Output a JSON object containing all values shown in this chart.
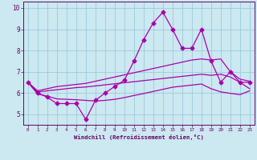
{
  "xlabel": "Windchill (Refroidissement éolien,°C)",
  "x": [
    0,
    1,
    2,
    3,
    4,
    5,
    6,
    7,
    8,
    9,
    10,
    11,
    12,
    13,
    14,
    15,
    16,
    17,
    18,
    19,
    20,
    21,
    22,
    23
  ],
  "line_main": [
    6.5,
    6.0,
    5.8,
    5.5,
    5.5,
    5.5,
    4.75,
    5.65,
    6.0,
    6.3,
    6.6,
    7.5,
    8.5,
    9.3,
    9.8,
    9.0,
    8.1,
    8.1,
    9.0,
    7.5,
    6.5,
    7.0,
    6.5,
    6.5
  ],
  "line_upper": [
    6.5,
    6.1,
    6.2,
    6.3,
    6.35,
    6.4,
    6.45,
    6.55,
    6.65,
    6.75,
    6.85,
    6.95,
    7.05,
    7.15,
    7.25,
    7.35,
    7.45,
    7.55,
    7.6,
    7.55,
    7.6,
    7.0,
    6.65,
    6.55
  ],
  "line_mid": [
    6.5,
    6.05,
    6.1,
    6.15,
    6.2,
    6.25,
    6.28,
    6.33,
    6.38,
    6.43,
    6.48,
    6.53,
    6.58,
    6.63,
    6.68,
    6.73,
    6.78,
    6.83,
    6.88,
    6.83,
    6.88,
    6.75,
    6.5,
    6.2
  ],
  "line_lower": [
    6.5,
    5.95,
    5.85,
    5.72,
    5.7,
    5.68,
    5.65,
    5.62,
    5.65,
    5.7,
    5.78,
    5.88,
    5.97,
    6.07,
    6.17,
    6.27,
    6.32,
    6.37,
    6.42,
    6.2,
    6.05,
    5.98,
    5.92,
    6.1
  ],
  "xlim": [
    -0.5,
    23.5
  ],
  "ylim": [
    4.5,
    10.3
  ],
  "yticks": [
    5,
    6,
    7,
    8,
    9,
    10
  ],
  "xticks": [
    0,
    1,
    2,
    3,
    4,
    5,
    6,
    7,
    8,
    9,
    10,
    11,
    12,
    13,
    14,
    15,
    16,
    17,
    18,
    19,
    20,
    21,
    22,
    23
  ],
  "line_color": "#aa00aa",
  "bg_color": "#cce8f0",
  "grid_color": "#99ccdd",
  "tick_color": "#660066",
  "spine_color": "#660066",
  "marker": "D",
  "markersize": 2.5,
  "linewidth": 0.9
}
